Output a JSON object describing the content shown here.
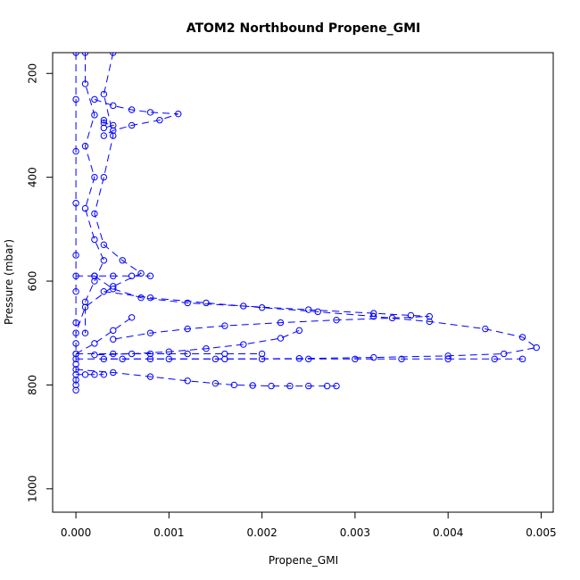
{
  "chart_data": {
    "type": "scatter",
    "title": "ATOM2 Northbound Propene_GMI",
    "xlabel": "Propene_GMI",
    "ylabel": "Pressure (mbar)",
    "xlim": [
      -0.00025,
      0.00513
    ],
    "ylim": [
      1045,
      160
    ],
    "y_reversed": true,
    "x_ticks": [
      0.0,
      0.001,
      0.002,
      0.003,
      0.004,
      0.005
    ],
    "x_tick_labels": [
      "0.000",
      "0.001",
      "0.002",
      "0.003",
      "0.004",
      "0.005"
    ],
    "y_ticks": [
      200,
      400,
      600,
      800,
      1000
    ],
    "y_tick_labels": [
      "200",
      "400",
      "600",
      "800",
      "1000"
    ],
    "grid": false,
    "legend": "none",
    "marker": "open-circle",
    "line_style": "dashed",
    "color": "#0000ff",
    "series": [
      {
        "x": [
          0.0,
          0.0,
          0.0,
          0.0,
          0.0,
          0.0,
          0.0,
          0.0,
          0.0,
          0.0,
          0.0,
          0.0
        ],
        "y": [
          160,
          250,
          350,
          450,
          550,
          620,
          680,
          720,
          760,
          790,
          800,
          810
        ]
      },
      {
        "x": [
          0.0001,
          0.0001,
          0.0002,
          0.0001,
          0.0002,
          0.0001,
          0.0002,
          0.0003,
          0.0002,
          0.0001,
          0.0001
        ],
        "y": [
          160,
          220,
          280,
          340,
          400,
          460,
          520,
          560,
          600,
          640,
          700
        ]
      },
      {
        "x": [
          0.0004,
          0.0003,
          0.0004,
          0.0003,
          0.0002,
          0.0003,
          0.0005,
          0.0007,
          0.0004,
          0.0001,
          0.0
        ],
        "y": [
          160,
          240,
          320,
          400,
          470,
          530,
          560,
          585,
          610,
          650,
          700
        ]
      },
      {
        "x": [
          0.0002,
          0.0004,
          0.0006,
          0.0008,
          0.0011,
          0.0009,
          0.0006,
          0.0004,
          0.0003
        ],
        "y": [
          250,
          262,
          270,
          275,
          278,
          290,
          300,
          310,
          320
        ]
      },
      {
        "x": [
          0.0002,
          0.0004,
          0.0007,
          0.0012,
          0.0018,
          0.0025,
          0.0032,
          0.0036,
          0.0038,
          0.0034,
          0.0028,
          0.0022,
          0.0016,
          0.0012,
          0.0008,
          0.0004
        ],
        "y": [
          590,
          615,
          632,
          642,
          648,
          655,
          662,
          666,
          668,
          671,
          675,
          680,
          686,
          692,
          700,
          712
        ]
      },
      {
        "x": [
          0.0003,
          0.0008,
          0.0014,
          0.002,
          0.0026,
          0.0032,
          0.0038,
          0.0044,
          0.0048,
          0.00495,
          0.0046,
          0.004,
          0.0032,
          0.0024,
          0.0016,
          0.0008,
          0.0003
        ],
        "y": [
          620,
          632,
          642,
          651,
          659,
          668,
          678,
          692,
          708,
          728,
          740,
          744,
          747,
          749,
          750,
          750,
          750
        ]
      },
      {
        "x": [
          0.0024,
          0.0022,
          0.0018,
          0.0014,
          0.001,
          0.0006,
          0.0002
        ],
        "y": [
          695,
          710,
          722,
          730,
          736,
          740,
          742
        ]
      },
      {
        "x": [
          0.0,
          0.0004,
          0.0008,
          0.0012,
          0.0016,
          0.002
        ],
        "y": [
          740,
          740,
          740,
          740,
          740,
          740
        ]
      },
      {
        "x": [
          0.0,
          0.0005,
          0.001,
          0.0015,
          0.002,
          0.0025,
          0.003,
          0.0035,
          0.004,
          0.0045,
          0.0048
        ],
        "y": [
          750,
          750,
          750,
          750,
          750,
          750,
          750,
          750,
          750,
          750,
          750
        ]
      },
      {
        "x": [
          0.0,
          0.0004,
          0.0008,
          0.0012,
          0.0015,
          0.0017,
          0.0019,
          0.0021,
          0.0023,
          0.0025,
          0.0027,
          0.0028
        ],
        "y": [
          770,
          776,
          784,
          792,
          797,
          800,
          801,
          802,
          802,
          802,
          802,
          802
        ]
      },
      {
        "x": [
          0.0,
          0.0002,
          0.0004,
          0.0006,
          0.0008
        ],
        "y": [
          590,
          590,
          590,
          590,
          590
        ]
      },
      {
        "x": [
          0.0,
          0.0002,
          0.0004,
          0.0006
        ],
        "y": [
          740,
          720,
          695,
          670
        ]
      },
      {
        "x": [
          0.0,
          0.0001,
          0.0002,
          0.0003
        ],
        "y": [
          780,
          780,
          780,
          780
        ]
      },
      {
        "x": [
          0.0003,
          0.0003,
          0.0004,
          0.0003
        ],
        "y": [
          290,
          295,
          300,
          305
        ]
      }
    ]
  }
}
